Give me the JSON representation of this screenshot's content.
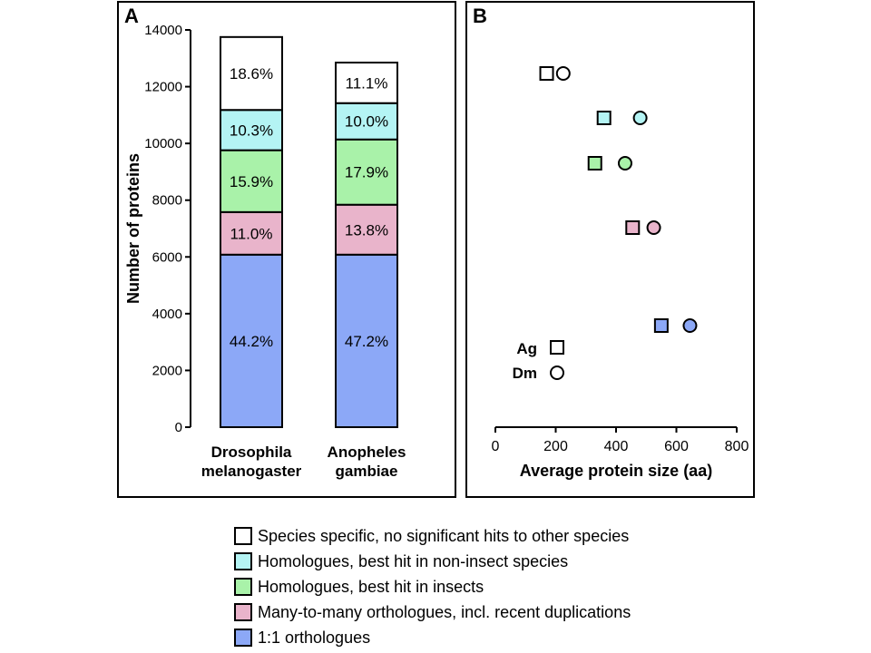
{
  "panel_a": {
    "label": "A"
  },
  "panel_b": {
    "label": "B"
  },
  "colors": {
    "species_specific": "#ffffff",
    "non_insect": "#b4f4f4",
    "insects": "#a9f2a9",
    "many_to_many": "#e9b4cb",
    "one_to_one": "#8ca8f7"
  },
  "chart_data": [
    {
      "type": "bar",
      "stacked": true,
      "title": "",
      "xlabel": "",
      "ylabel": "Number of proteins",
      "ylim": [
        0,
        14000
      ],
      "yticks": [
        "0",
        "2000",
        "4000",
        "6000",
        "8000",
        "10000",
        "12000",
        "14000"
      ],
      "categories": [
        {
          "line1": "Drosophila",
          "line2": "melanogaster"
        },
        {
          "line1": "Anopheles",
          "line2": "gambiae"
        }
      ],
      "totals": [
        13750,
        12850
      ],
      "series": [
        {
          "key": "one_to_one",
          "top": [
            6080,
            6080
          ],
          "labels": [
            "44.2%",
            "47.2%"
          ]
        },
        {
          "key": "many_to_many",
          "top": [
            7580,
            7840
          ],
          "labels": [
            "11.0%",
            "13.8%"
          ]
        },
        {
          "key": "insects",
          "top": [
            9760,
            10140
          ],
          "labels": [
            "15.9%",
            "17.9%"
          ]
        },
        {
          "key": "non_insect",
          "top": [
            11180,
            11420
          ],
          "labels": [
            "10.3%",
            "10.0%"
          ]
        },
        {
          "key": "species_specific",
          "top": [
            13750,
            12850
          ],
          "labels": [
            "18.6%",
            "11.1%"
          ]
        }
      ]
    },
    {
      "type": "scatter",
      "title": "",
      "xlabel": "Average protein size (aa)",
      "ylabel": "",
      "xlim": [
        0,
        800
      ],
      "xticks": [
        "0",
        "200",
        "400",
        "600",
        "800"
      ],
      "series": [
        {
          "key": "species_specific",
          "ag": 170,
          "dm": 225
        },
        {
          "key": "non_insect",
          "ag": 360,
          "dm": 480
        },
        {
          "key": "insects",
          "ag": 330,
          "dm": 430
        },
        {
          "key": "many_to_many",
          "ag": 455,
          "dm": 525
        },
        {
          "key": "one_to_one",
          "ag": 550,
          "dm": 645
        }
      ],
      "key_labels": {
        "ag": "Ag",
        "dm": "Dm"
      }
    }
  ],
  "legend": [
    {
      "key": "species_specific",
      "label": "Species specific, no significant hits to other species"
    },
    {
      "key": "non_insect",
      "label": "Homologues, best hit in non-insect species"
    },
    {
      "key": "insects",
      "label": "Homologues, best hit in insects"
    },
    {
      "key": "many_to_many",
      "label": "Many-to-many orthologues, incl. recent duplications"
    },
    {
      "key": "one_to_one",
      "label": "1:1 orthologues"
    }
  ]
}
